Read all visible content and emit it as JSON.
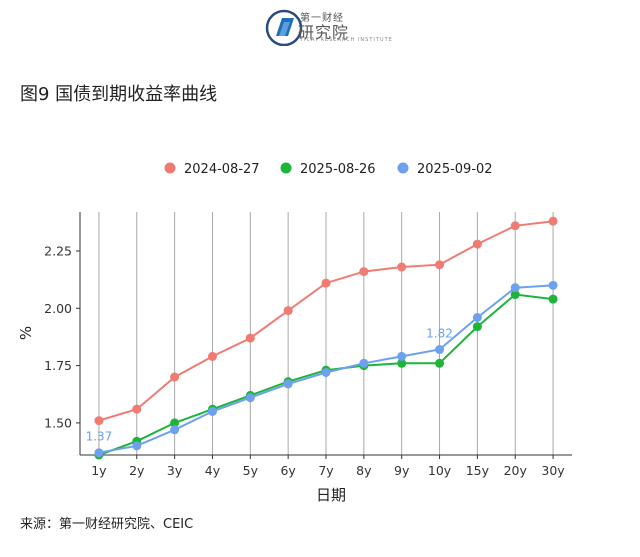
{
  "header": {
    "brand_top": "第一财经",
    "brand_main": "研究院",
    "brand_sub": "YICAI RESEARCH INSTITUTE"
  },
  "figure": {
    "title": "图9 国债到期收益率曲线",
    "source": "来源：第一财经研究院、CEIC"
  },
  "chart_data": {
    "type": "line",
    "title": "图9 国债到期收益率曲线",
    "xlabel": "日期",
    "ylabel": "%",
    "categories": [
      "1y",
      "2y",
      "3y",
      "4y",
      "5y",
      "6y",
      "7y",
      "8y",
      "9y",
      "10y",
      "15y",
      "20y",
      "30y"
    ],
    "ylim": [
      1.36,
      2.42
    ],
    "yticks": [
      1.5,
      1.75,
      2.0,
      2.25
    ],
    "ytick_labels": [
      "1.50",
      "1.75",
      "2.00",
      "2.25"
    ],
    "grid": "vertical",
    "legend_position": "top",
    "series": [
      {
        "name": "2024-08-27",
        "color": "#f07b72",
        "values": [
          1.51,
          1.56,
          1.7,
          1.79,
          1.87,
          1.99,
          2.11,
          2.16,
          2.18,
          2.19,
          2.28,
          2.36,
          2.38
        ]
      },
      {
        "name": "2025-08-26",
        "color": "#1db43a",
        "values": [
          1.36,
          1.42,
          1.5,
          1.56,
          1.62,
          1.68,
          1.73,
          1.75,
          1.76,
          1.76,
          1.92,
          2.06,
          2.04
        ]
      },
      {
        "name": "2025-09-02",
        "color": "#6ea0f0",
        "values": [
          1.37,
          1.4,
          1.47,
          1.55,
          1.61,
          1.67,
          1.72,
          1.76,
          1.79,
          1.82,
          1.96,
          2.09,
          2.1
        ]
      }
    ],
    "annotations": [
      {
        "series": "2025-09-02",
        "category": "1y",
        "text": "1.37"
      },
      {
        "series": "2025-09-02",
        "category": "10y",
        "text": "1.82"
      }
    ]
  }
}
